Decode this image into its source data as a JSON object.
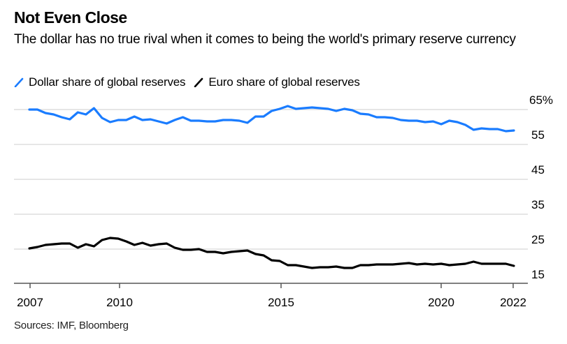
{
  "chart_data": {
    "type": "line",
    "title": "Not Even Close",
    "subtitle": "The dollar has no true rival when it comes to being the world's primary reserve currency",
    "xlabel": "",
    "ylabel": "",
    "x_start": "2007 Q1",
    "x_frequency": "quarterly",
    "x_ticks": [
      {
        "label": "2007",
        "index": 0
      },
      {
        "label": "2010",
        "index": 11
      },
      {
        "label": "2015",
        "index": 31
      },
      {
        "label": "2020",
        "index": 51
      },
      {
        "label": "2022",
        "index": 60
      }
    ],
    "y_ticks": [
      "65%",
      "55",
      "45",
      "35",
      "25",
      "15"
    ],
    "y_tick_values": [
      65,
      55,
      45,
      35,
      25,
      15
    ],
    "ylim": [
      15,
      65
    ],
    "grid": true,
    "legend_position": "top-left",
    "series": [
      {
        "name": "Dollar share of global reserves",
        "color": "#1a7cff",
        "values": [
          65.0,
          65.0,
          64.0,
          63.6,
          62.8,
          62.2,
          64.2,
          63.6,
          65.4,
          62.6,
          61.4,
          62.0,
          62.0,
          63.0,
          62.0,
          62.2,
          61.6,
          61.0,
          62.0,
          62.8,
          61.8,
          61.8,
          61.6,
          61.6,
          62.0,
          62.0,
          61.8,
          61.2,
          63.0,
          63.0,
          64.6,
          65.2,
          66.0,
          65.2,
          65.4,
          65.6,
          65.4,
          65.2,
          64.6,
          65.2,
          64.8,
          63.8,
          63.6,
          62.8,
          62.8,
          62.6,
          62.0,
          61.8,
          61.8,
          61.4,
          61.6,
          60.8,
          61.8,
          61.4,
          60.6,
          59.2,
          59.6,
          59.4,
          59.4,
          58.8,
          59.0
        ]
      },
      {
        "name": "Euro share of global reserves",
        "color": "#000000",
        "values": [
          25.2,
          25.6,
          26.2,
          26.4,
          26.6,
          26.6,
          25.4,
          26.4,
          25.8,
          27.6,
          28.2,
          28.0,
          27.2,
          26.2,
          26.8,
          26.0,
          26.4,
          26.6,
          25.4,
          24.8,
          24.8,
          25.0,
          24.2,
          24.2,
          23.8,
          24.2,
          24.4,
          24.6,
          23.6,
          23.2,
          21.8,
          21.6,
          20.4,
          20.4,
          20.0,
          19.6,
          19.8,
          19.8,
          20.0,
          19.6,
          19.6,
          20.4,
          20.4,
          20.6,
          20.6,
          20.6,
          20.8,
          21.0,
          20.6,
          20.8,
          20.6,
          20.8,
          20.4,
          20.6,
          20.8,
          21.4,
          20.8,
          20.8,
          20.8,
          20.8,
          20.2
        ]
      }
    ],
    "source": "Sources: IMF, Bloomberg"
  }
}
